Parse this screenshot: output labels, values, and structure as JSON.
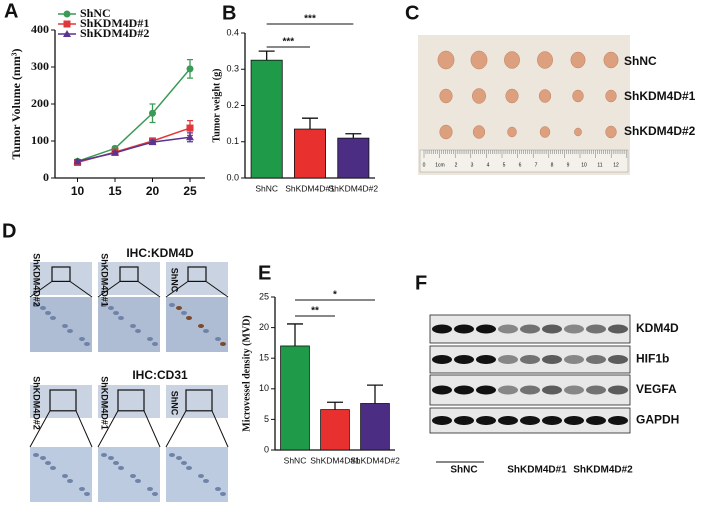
{
  "chart_data": [
    {
      "type": "line",
      "ylabel": "Tumor Volume (mm³)",
      "x": [
        10,
        15,
        20,
        25
      ],
      "xlim": [
        7,
        27
      ],
      "xticks": [
        10,
        15,
        20,
        25
      ],
      "ylim": [
        0,
        400
      ],
      "yticks": [
        0,
        100,
        200,
        300,
        400
      ],
      "legend": "upper left",
      "series": [
        {
          "name": "ShNC",
          "color": "#3a9a56",
          "values": [
            45,
            80,
            175,
            295
          ],
          "errors": [
            5,
            5,
            25,
            25
          ]
        },
        {
          "name": "ShKDM4D#1",
          "color": "#e0383a",
          "values": [
            42,
            70,
            100,
            135
          ],
          "errors": [
            4,
            5,
            8,
            20
          ]
        },
        {
          "name": "ShKDM4D#2",
          "color": "#5a3590",
          "values": [
            45,
            68,
            97,
            110
          ],
          "errors": [
            4,
            4,
            5,
            12
          ]
        }
      ]
    },
    {
      "type": "bar",
      "ylabel": "Tumor weight (g)",
      "categories": [
        "ShNC",
        "ShKDM4D#1",
        "ShKDM4D#2"
      ],
      "values": [
        0.325,
        0.135,
        0.11
      ],
      "errors": [
        0.025,
        0.03,
        0.012
      ],
      "colors": [
        "#1f9a48",
        "#e8302f",
        "#4b2d84"
      ],
      "ylim": [
        0,
        0.4
      ],
      "yticks": [
        {
          "value": 0,
          "label": "0.0"
        },
        0.1,
        0.2,
        0.3,
        0.4
      ],
      "annotations": [
        "***",
        "***"
      ]
    },
    {
      "type": "bar",
      "ylabel": "Microvessel density (MVD)",
      "categories": [
        "ShNC",
        "ShKDM4D#1",
        "ShKDM4D#2"
      ],
      "values": [
        17,
        6.6,
        7.6
      ],
      "errors": [
        3.6,
        1.2,
        3.0
      ],
      "colors": [
        "#1f9a48",
        "#e8302f",
        "#4b2d84"
      ],
      "ylim": [
        0,
        25
      ],
      "yticks": [
        0,
        5,
        10,
        15,
        20,
        25
      ],
      "annotations": [
        "**",
        "*"
      ]
    }
  ],
  "figure": {
    "panels": [
      "A",
      "B",
      "C",
      "D",
      "E",
      "F"
    ],
    "tumor_photo": {
      "row_labels": [
        "ShNC",
        "ShKDM4D#1",
        "ShKDM4D#2"
      ],
      "ruler_labels": [
        "0",
        "1cm",
        "2",
        "3",
        "4",
        "5",
        "6",
        "7",
        "8",
        "9",
        "10",
        "11",
        "12"
      ]
    },
    "ihc": {
      "titles": [
        "IHC:KDM4D",
        "IHC:CD31"
      ],
      "sample_labels": [
        "ShKDM4D#2",
        "ShKDM4D#1",
        "ShNC"
      ]
    },
    "blot": {
      "proteins": [
        "KDM4D",
        "HIF1b",
        "VEGFA",
        "GAPDH"
      ],
      "groups": [
        "ShNC",
        "ShKDM4D#1",
        "ShKDM4D#2"
      ]
    }
  }
}
